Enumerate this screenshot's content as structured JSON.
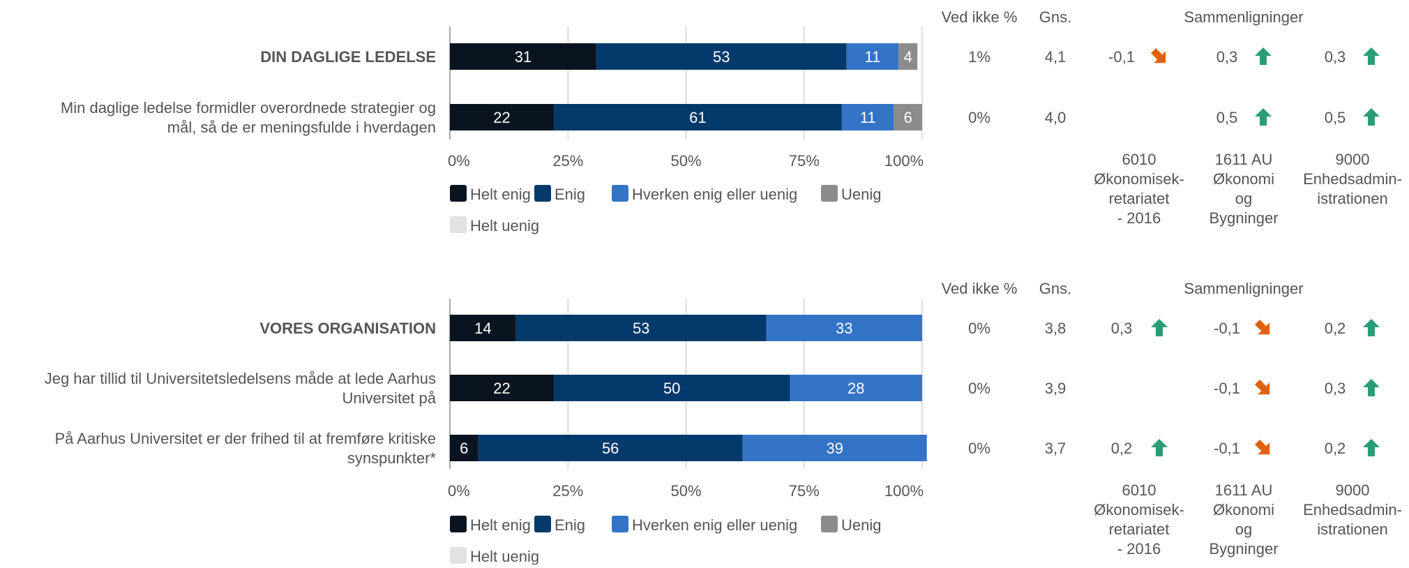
{
  "colors": {
    "helt_enig": "#0a1420",
    "enig": "#043a6b",
    "hverken": "#3474c6",
    "uenig": "#8c8c8c",
    "helt_uenig": "#e2e2e2",
    "arrow_up": "#2a9d78",
    "arrow_down": "#e0620d",
    "grid": "#c0c0c0"
  },
  "legend": [
    "Helt enig",
    "Enig",
    "Hverken enig eller uenig",
    "Uenig",
    "Helt uenig"
  ],
  "headers": {
    "ved_ikke": "Ved ikke %",
    "gns": "Gns.",
    "sammenligninger": "Sammenligninger"
  },
  "comparison_labels": [
    [
      "6010",
      "Økonomisek-",
      "retariatet",
      "- 2016"
    ],
    [
      "1611 AU",
      "Økonomi",
      "og",
      "Bygninger"
    ],
    [
      "9000",
      "Enhedsadmin-",
      "istrationen"
    ]
  ],
  "chart_data": [
    {
      "type": "bar",
      "orientation": "horizontal-stacked-percent",
      "xlim": [
        0,
        100
      ],
      "x_ticks": [
        "0%",
        "25%",
        "50%",
        "75%",
        "100%"
      ],
      "series_names": [
        "Helt enig",
        "Enig",
        "Hverken enig eller uenig",
        "Uenig",
        "Helt uenig"
      ],
      "rows": [
        {
          "label": [
            "DIN DAGLIGE LEDELSE"
          ],
          "bold": true,
          "values": [
            31,
            53,
            11,
            4,
            0
          ],
          "ved_ikke": "1%",
          "gns": "4,1",
          "comparisons": [
            {
              "value": "-0,1",
              "dir": "down"
            },
            {
              "value": "0,3",
              "dir": "up"
            },
            {
              "value": "0,3",
              "dir": "up"
            }
          ]
        },
        {
          "label": [
            "Min daglige ledelse formidler overordnede strategier og",
            "mål, så de er meningsfulde i hverdagen"
          ],
          "bold": false,
          "values": [
            22,
            61,
            11,
            6,
            0
          ],
          "ved_ikke": "0%",
          "gns": "4,0",
          "comparisons": [
            null,
            {
              "value": "0,5",
              "dir": "up"
            },
            {
              "value": "0,5",
              "dir": "up"
            }
          ]
        }
      ]
    },
    {
      "type": "bar",
      "orientation": "horizontal-stacked-percent",
      "xlim": [
        0,
        100
      ],
      "x_ticks": [
        "0%",
        "25%",
        "50%",
        "75%",
        "100%"
      ],
      "series_names": [
        "Helt enig",
        "Enig",
        "Hverken enig eller uenig",
        "Uenig",
        "Helt uenig"
      ],
      "rows": [
        {
          "label": [
            "VORES ORGANISATION"
          ],
          "bold": true,
          "values": [
            14,
            53,
            33,
            0,
            0
          ],
          "ved_ikke": "0%",
          "gns": "3,8",
          "comparisons": [
            {
              "value": "0,3",
              "dir": "up"
            },
            {
              "value": "-0,1",
              "dir": "down"
            },
            {
              "value": "0,2",
              "dir": "up"
            }
          ]
        },
        {
          "label": [
            "Jeg har tillid til Universitetsledelsens måde at lede Aarhus",
            "Universitet på"
          ],
          "bold": false,
          "values": [
            22,
            50,
            28,
            0,
            0
          ],
          "ved_ikke": "0%",
          "gns": "3,9",
          "comparisons": [
            null,
            {
              "value": "-0,1",
              "dir": "down"
            },
            {
              "value": "0,3",
              "dir": "up"
            }
          ]
        },
        {
          "label": [
            "På Aarhus Universitet er der frihed til at fremføre kritiske",
            "synspunkter*"
          ],
          "bold": false,
          "values": [
            6,
            56,
            39,
            0,
            0
          ],
          "ved_ikke": "0%",
          "gns": "3,7",
          "comparisons": [
            {
              "value": "0,2",
              "dir": "up"
            },
            {
              "value": "-0,1",
              "dir": "down"
            },
            {
              "value": "0,2",
              "dir": "up"
            }
          ]
        }
      ]
    }
  ]
}
